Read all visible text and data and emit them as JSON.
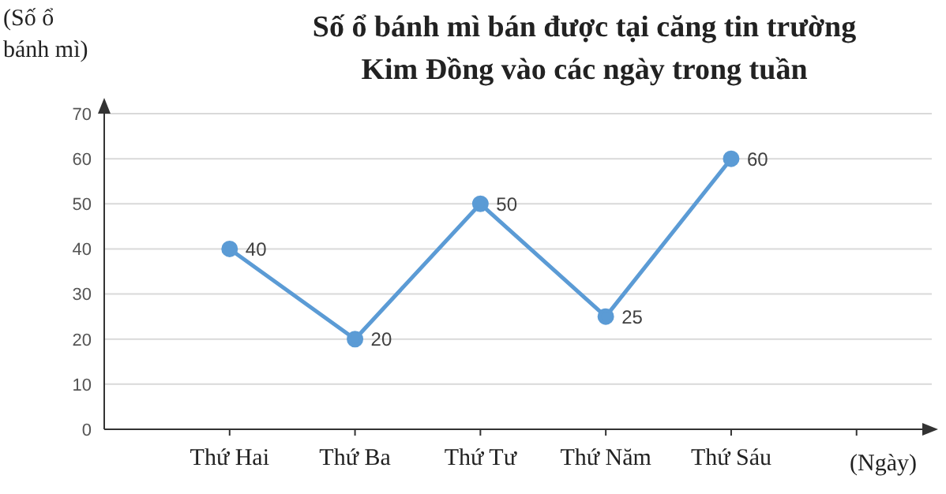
{
  "chart_data": {
    "type": "line",
    "title": "Số ổ bánh mì bán được tại căng tin trường Kim Đồng vào các ngày trong tuần",
    "xlabel": "(Ngày)",
    "ylabel": "(Số ổ bánh mì)",
    "categories": [
      "Thứ Hai",
      "Thứ Ba",
      "Thứ Tư",
      "Thứ Năm",
      "Thứ Sáu",
      null
    ],
    "series": [
      {
        "color": "#5b9bd5",
        "values": [
          40,
          20,
          50,
          25,
          60,
          null
        ]
      }
    ],
    "ylim": [
      0,
      70
    ],
    "yticks": [
      0,
      10,
      20,
      30,
      40,
      50,
      60,
      70
    ],
    "grid": "y",
    "marker": "circle",
    "line_style": "solid",
    "data_labels": true
  }
}
